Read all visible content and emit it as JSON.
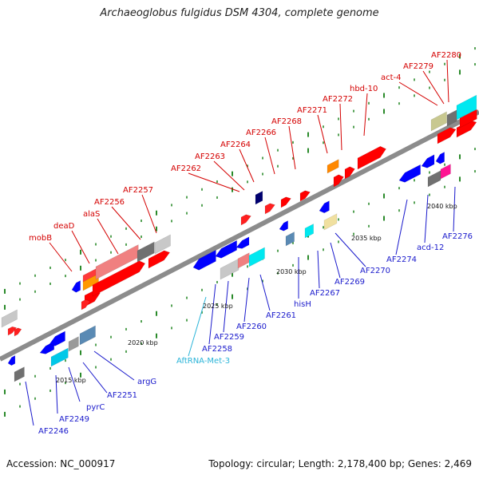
{
  "title": "Archaeoglobus fulgidus DSM 4304, complete genome",
  "footer": {
    "accession": "Accession: NC_000917",
    "summary": "Topology: circular; Length: 2,178,400 bp; Genes: 2,469"
  },
  "colors": {
    "forward_gene": "#ff0000",
    "reverse_gene": "#0000ff",
    "backbone": "#8c8c8c",
    "tick": "#2a8a2a",
    "top_label": "#d40000",
    "bottom_label": "#1a1acc",
    "trna_label": "#2ab4d8"
  },
  "tick_labels": [
    "2015 kbp",
    "2020 kbp",
    "2025 kbp",
    "2030 kbp",
    "2035 kbp",
    "2040 kbp"
  ],
  "top_labels": [
    "mobB",
    "deaD",
    "alaS",
    "AF2256",
    "AF2257",
    "AF2262",
    "AF2263",
    "AF2264",
    "AF2266",
    "AF2268",
    "AF2271",
    "AF2272",
    "hbd-10",
    "act-4",
    "AF2279",
    "AF2280"
  ],
  "bottom_labels": [
    "AF2246",
    "AF2249",
    "pyrC",
    "AF2251",
    "argG",
    "AftRNA-Met-3",
    "AF2258",
    "AF2259",
    "AF2260",
    "AF2261",
    "hisH",
    "AF2267",
    "AF2269",
    "AF2270",
    "AF2274",
    "acd-12",
    "AF2276"
  ]
}
